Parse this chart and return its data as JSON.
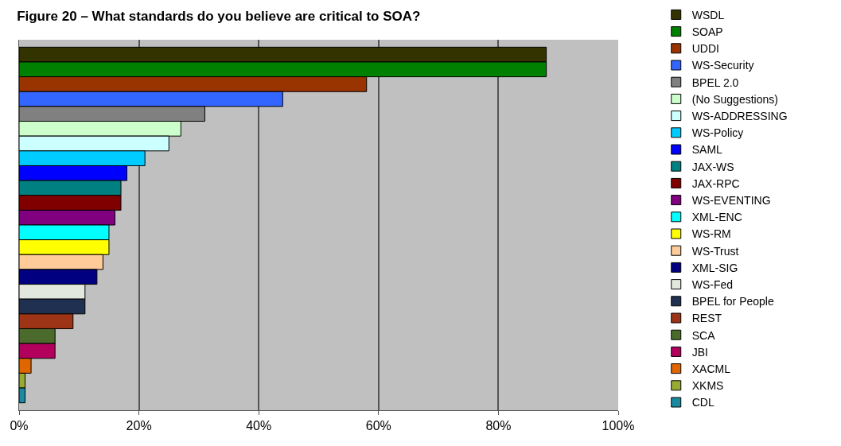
{
  "chart_data": {
    "type": "bar",
    "orientation": "horizontal",
    "title": "Figure 20 – What standards do you believe are critical to SOA?",
    "categories": [
      null
    ],
    "series": [
      {
        "name": "WSDL",
        "color": "#333300",
        "values": [
          88
        ]
      },
      {
        "name": "SOAP",
        "color": "#008000",
        "values": [
          88
        ]
      },
      {
        "name": "UDDI",
        "color": "#993300",
        "values": [
          58
        ]
      },
      {
        "name": "WS-Security",
        "color": "#3366ff",
        "values": [
          44
        ]
      },
      {
        "name": "BPEL 2.0",
        "color": "#808080",
        "values": [
          31
        ]
      },
      {
        "name": "(No Suggestions)",
        "color": "#ccffcc",
        "values": [
          27
        ]
      },
      {
        "name": "WS-ADDRESSING",
        "color": "#ccffff",
        "values": [
          25
        ]
      },
      {
        "name": "WS-Policy",
        "color": "#00ccff",
        "values": [
          21
        ]
      },
      {
        "name": "SAML",
        "color": "#0000ff",
        "values": [
          18
        ]
      },
      {
        "name": "JAX-WS",
        "color": "#008080",
        "values": [
          17
        ]
      },
      {
        "name": "JAX-RPC",
        "color": "#800000",
        "values": [
          17
        ]
      },
      {
        "name": "WS-EVENTING",
        "color": "#800080",
        "values": [
          16
        ]
      },
      {
        "name": "XML-ENC",
        "color": "#00ffff",
        "values": [
          15
        ]
      },
      {
        "name": "WS-RM",
        "color": "#ffff00",
        "values": [
          15
        ]
      },
      {
        "name": "WS-Trust",
        "color": "#ffcc99",
        "values": [
          14
        ]
      },
      {
        "name": "XML-SIG",
        "color": "#000080",
        "values": [
          13
        ]
      },
      {
        "name": "WS-Fed",
        "color": "#e3e8de",
        "values": [
          11
        ]
      },
      {
        "name": "BPEL for People",
        "color": "#1f3050",
        "values": [
          11
        ]
      },
      {
        "name": "REST",
        "color": "#9c3415",
        "values": [
          9
        ]
      },
      {
        "name": "SCA",
        "color": "#4a6b2c",
        "values": [
          6
        ]
      },
      {
        "name": "JBI",
        "color": "#b3005c",
        "values": [
          6
        ]
      },
      {
        "name": "XACML",
        "color": "#e06600",
        "values": [
          2
        ]
      },
      {
        "name": "XKMS",
        "color": "#99aa33",
        "values": [
          1
        ]
      },
      {
        "name": "CDL",
        "color": "#1a8aa0",
        "values": [
          1
        ]
      }
    ],
    "xlim": [
      0,
      100
    ],
    "xticks": [
      {
        "value": 0,
        "label": "0%"
      },
      {
        "value": 20,
        "label": "20%"
      },
      {
        "value": 40,
        "label": "40%"
      },
      {
        "value": 60,
        "label": "60%"
      },
      {
        "value": 80,
        "label": "80%"
      },
      {
        "value": 100,
        "label": "100%"
      }
    ],
    "grid": "x",
    "legend": "right",
    "tick_labels": "x"
  }
}
